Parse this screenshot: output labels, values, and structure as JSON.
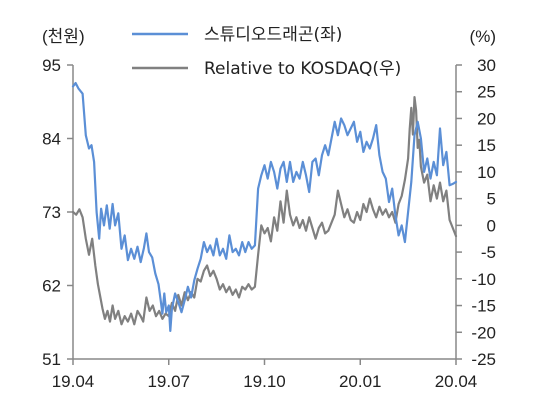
{
  "chart_data": {
    "type": "line",
    "left_axis_unit": "(천원)",
    "right_axis_unit": "(%)",
    "left_ylim": [
      51,
      95
    ],
    "left_ticks": [
      "95",
      "84",
      "73",
      "62",
      "51"
    ],
    "right_ylim": [
      -25,
      30
    ],
    "right_ticks": [
      "30",
      "25",
      "20",
      "15",
      "10",
      "5",
      "0",
      "-5",
      "-10",
      "-15",
      "-20",
      "-25"
    ],
    "x_ticks": [
      "19.04",
      "19.07",
      "19.10",
      "20.01",
      "20.04"
    ],
    "x_range_months": [
      0,
      12
    ],
    "grid": false,
    "legend_position": "top",
    "series": [
      {
        "name": "스튜디오드래곤(좌)",
        "axis": "left",
        "color": "#5b8fd6",
        "points": [
          [
            0.0,
            91.8
          ],
          [
            0.08,
            92.3
          ],
          [
            0.17,
            91.5
          ],
          [
            0.3,
            90.7
          ],
          [
            0.4,
            84.5
          ],
          [
            0.5,
            82.5
          ],
          [
            0.58,
            83.0
          ],
          [
            0.66,
            80.5
          ],
          [
            0.74,
            73.0
          ],
          [
            0.82,
            69.0
          ],
          [
            0.88,
            73.5
          ],
          [
            0.97,
            71.0
          ],
          [
            1.06,
            74.0
          ],
          [
            1.15,
            70.5
          ],
          [
            1.24,
            74.2
          ],
          [
            1.32,
            71.0
          ],
          [
            1.42,
            72.8
          ],
          [
            1.52,
            67.5
          ],
          [
            1.62,
            69.5
          ],
          [
            1.72,
            65.8
          ],
          [
            1.82,
            67.5
          ],
          [
            1.92,
            66.0
          ],
          [
            2.02,
            67.8
          ],
          [
            2.12,
            65.5
          ],
          [
            2.22,
            67.6
          ],
          [
            2.3,
            69.8
          ],
          [
            2.38,
            67.0
          ],
          [
            2.48,
            66.2
          ],
          [
            2.58,
            63.8
          ],
          [
            2.68,
            62.2
          ],
          [
            2.74,
            60.0
          ],
          [
            2.8,
            57.8
          ],
          [
            2.86,
            60.8
          ],
          [
            2.92,
            58.0
          ],
          [
            3.0,
            59.0
          ],
          [
            3.05,
            55.2
          ],
          [
            3.1,
            58.5
          ],
          [
            3.2,
            60.8
          ],
          [
            3.3,
            59.5
          ],
          [
            3.4,
            58.0
          ],
          [
            3.5,
            59.8
          ],
          [
            3.6,
            61.8
          ],
          [
            3.7,
            60.2
          ],
          [
            3.8,
            62.8
          ],
          [
            3.9,
            64.5
          ],
          [
            4.0,
            66.0
          ],
          [
            4.1,
            68.5
          ],
          [
            4.2,
            67.0
          ],
          [
            4.3,
            68.0
          ],
          [
            4.4,
            66.5
          ],
          [
            4.5,
            69.0
          ],
          [
            4.6,
            66.5
          ],
          [
            4.7,
            67.5
          ],
          [
            4.8,
            66.0
          ],
          [
            4.9,
            69.5
          ],
          [
            5.0,
            67.0
          ],
          [
            5.1,
            67.5
          ],
          [
            5.2,
            66.5
          ],
          [
            5.3,
            68.5
          ],
          [
            5.4,
            67.0
          ],
          [
            5.5,
            68.5
          ],
          [
            5.6,
            67.5
          ],
          [
            5.7,
            68.0
          ],
          [
            5.8,
            76.5
          ],
          [
            5.9,
            78.5
          ],
          [
            6.0,
            80.0
          ],
          [
            6.1,
            78.0
          ],
          [
            6.2,
            80.5
          ],
          [
            6.3,
            79.0
          ],
          [
            6.4,
            76.5
          ],
          [
            6.5,
            79.5
          ],
          [
            6.6,
            80.5
          ],
          [
            6.7,
            77.5
          ],
          [
            6.8,
            80.5
          ],
          [
            6.9,
            77.5
          ],
          [
            7.0,
            79.0
          ],
          [
            7.1,
            78.0
          ],
          [
            7.2,
            80.5
          ],
          [
            7.3,
            78.5
          ],
          [
            7.4,
            76.0
          ],
          [
            7.5,
            80.5
          ],
          [
            7.6,
            81.0
          ],
          [
            7.7,
            78.5
          ],
          [
            7.8,
            81.5
          ],
          [
            7.9,
            83.0
          ],
          [
            8.0,
            81.5
          ],
          [
            8.1,
            84.0
          ],
          [
            8.2,
            86.5
          ],
          [
            8.3,
            84.5
          ],
          [
            8.4,
            87.0
          ],
          [
            8.5,
            86.0
          ],
          [
            8.6,
            84.5
          ],
          [
            8.7,
            85.5
          ],
          [
            8.8,
            86.5
          ],
          [
            8.9,
            83.5
          ],
          [
            9.0,
            85.0
          ],
          [
            9.1,
            82.0
          ],
          [
            9.2,
            83.5
          ],
          [
            9.3,
            82.5
          ],
          [
            9.4,
            84.0
          ],
          [
            9.5,
            86.0
          ],
          [
            9.6,
            81.5
          ],
          [
            9.7,
            79.0
          ],
          [
            9.8,
            78.0
          ],
          [
            9.9,
            74.5
          ],
          [
            10.0,
            76.5
          ],
          [
            10.1,
            72.5
          ],
          [
            10.2,
            69.5
          ],
          [
            10.3,
            71.0
          ],
          [
            10.4,
            68.5
          ],
          [
            10.5,
            73.0
          ],
          [
            10.6,
            77.5
          ],
          [
            10.7,
            84.5
          ],
          [
            10.8,
            86.5
          ],
          [
            10.9,
            84.0
          ],
          [
            11.0,
            79.0
          ],
          [
            11.1,
            81.0
          ],
          [
            11.2,
            78.0
          ],
          [
            11.3,
            80.5
          ],
          [
            11.4,
            78.5
          ],
          [
            11.5,
            85.5
          ],
          [
            11.6,
            80.0
          ],
          [
            11.7,
            82.0
          ],
          [
            11.8,
            77.0
          ],
          [
            11.9,
            77.2
          ],
          [
            12.0,
            77.5
          ]
        ]
      },
      {
        "name": "Relative to KOSDAQ(우)",
        "axis": "right",
        "color": "#808080",
        "points": [
          [
            0.0,
            2.5
          ],
          [
            0.1,
            2.0
          ],
          [
            0.2,
            3.0
          ],
          [
            0.3,
            1.5
          ],
          [
            0.4,
            -2.5
          ],
          [
            0.5,
            -5.5
          ],
          [
            0.6,
            -2.5
          ],
          [
            0.7,
            -7.5
          ],
          [
            0.78,
            -11.0
          ],
          [
            0.86,
            -13.5
          ],
          [
            0.92,
            -15.5
          ],
          [
            1.0,
            -17.5
          ],
          [
            1.08,
            -16.0
          ],
          [
            1.16,
            -18.0
          ],
          [
            1.24,
            -15.0
          ],
          [
            1.32,
            -17.5
          ],
          [
            1.42,
            -16.0
          ],
          [
            1.52,
            -18.5
          ],
          [
            1.62,
            -17.0
          ],
          [
            1.72,
            -18.0
          ],
          [
            1.82,
            -16.5
          ],
          [
            1.92,
            -18.5
          ],
          [
            2.02,
            -16.0
          ],
          [
            2.12,
            -17.0
          ],
          [
            2.2,
            -18.0
          ],
          [
            2.3,
            -13.5
          ],
          [
            2.4,
            -16.0
          ],
          [
            2.5,
            -15.0
          ],
          [
            2.6,
            -17.0
          ],
          [
            2.7,
            -16.0
          ],
          [
            2.8,
            -17.5
          ],
          [
            2.9,
            -16.5
          ],
          [
            3.0,
            -17.0
          ],
          [
            3.1,
            -14.5
          ],
          [
            3.2,
            -16.0
          ],
          [
            3.3,
            -13.0
          ],
          [
            3.4,
            -15.0
          ],
          [
            3.5,
            -12.5
          ],
          [
            3.6,
            -14.0
          ],
          [
            3.7,
            -12.5
          ],
          [
            3.8,
            -13.5
          ],
          [
            3.9,
            -10.0
          ],
          [
            4.0,
            -10.5
          ],
          [
            4.1,
            -8.5
          ],
          [
            4.2,
            -7.5
          ],
          [
            4.3,
            -9.5
          ],
          [
            4.4,
            -8.5
          ],
          [
            4.5,
            -10.0
          ],
          [
            4.6,
            -12.0
          ],
          [
            4.7,
            -11.0
          ],
          [
            4.8,
            -12.5
          ],
          [
            4.9,
            -11.5
          ],
          [
            5.0,
            -13.0
          ],
          [
            5.1,
            -12.0
          ],
          [
            5.2,
            -13.5
          ],
          [
            5.3,
            -11.5
          ],
          [
            5.4,
            -12.0
          ],
          [
            5.5,
            -11.0
          ],
          [
            5.6,
            -12.0
          ],
          [
            5.7,
            -11.5
          ],
          [
            5.8,
            -5.5
          ],
          [
            5.9,
            0.0
          ],
          [
            6.0,
            -1.5
          ],
          [
            6.1,
            -0.5
          ],
          [
            6.2,
            -3.0
          ],
          [
            6.3,
            1.5
          ],
          [
            6.4,
            -1.0
          ],
          [
            6.5,
            4.5
          ],
          [
            6.6,
            0.5
          ],
          [
            6.7,
            6.5
          ],
          [
            6.8,
            2.0
          ],
          [
            6.9,
            0.0
          ],
          [
            7.0,
            1.5
          ],
          [
            7.1,
            -0.5
          ],
          [
            7.2,
            1.0
          ],
          [
            7.3,
            -1.0
          ],
          [
            7.4,
            1.5
          ],
          [
            7.5,
            -0.5
          ],
          [
            7.6,
            -2.5
          ],
          [
            7.7,
            -0.5
          ],
          [
            7.8,
            0.5
          ],
          [
            7.9,
            -1.5
          ],
          [
            8.0,
            -1.0
          ],
          [
            8.1,
            0.5
          ],
          [
            8.2,
            2.0
          ],
          [
            8.3,
            6.5
          ],
          [
            8.4,
            4.0
          ],
          [
            8.5,
            1.5
          ],
          [
            8.6,
            3.0
          ],
          [
            8.7,
            1.0
          ],
          [
            8.8,
            0.5
          ],
          [
            8.9,
            2.5
          ],
          [
            9.0,
            1.0
          ],
          [
            9.1,
            4.0
          ],
          [
            9.2,
            2.5
          ],
          [
            9.3,
            5.0
          ],
          [
            9.4,
            3.0
          ],
          [
            9.5,
            1.5
          ],
          [
            9.6,
            3.5
          ],
          [
            9.7,
            2.0
          ],
          [
            9.8,
            3.0
          ],
          [
            9.9,
            1.5
          ],
          [
            10.0,
            2.5
          ],
          [
            10.1,
            0.5
          ],
          [
            10.2,
            4.0
          ],
          [
            10.3,
            5.5
          ],
          [
            10.4,
            8.5
          ],
          [
            10.5,
            12.5
          ],
          [
            10.55,
            18.0
          ],
          [
            10.6,
            22.0
          ],
          [
            10.65,
            17.0
          ],
          [
            10.7,
            24.0
          ],
          [
            10.75,
            21.5
          ],
          [
            10.8,
            14.5
          ],
          [
            10.85,
            16.0
          ],
          [
            10.9,
            11.0
          ],
          [
            11.0,
            8.0
          ],
          [
            11.1,
            9.5
          ],
          [
            11.2,
            4.5
          ],
          [
            11.3,
            7.5
          ],
          [
            11.4,
            5.0
          ],
          [
            11.5,
            8.0
          ],
          [
            11.6,
            4.5
          ],
          [
            11.7,
            6.5
          ],
          [
            11.8,
            1.0
          ],
          [
            11.9,
            -0.5
          ],
          [
            12.0,
            -2.0
          ]
        ]
      }
    ]
  }
}
